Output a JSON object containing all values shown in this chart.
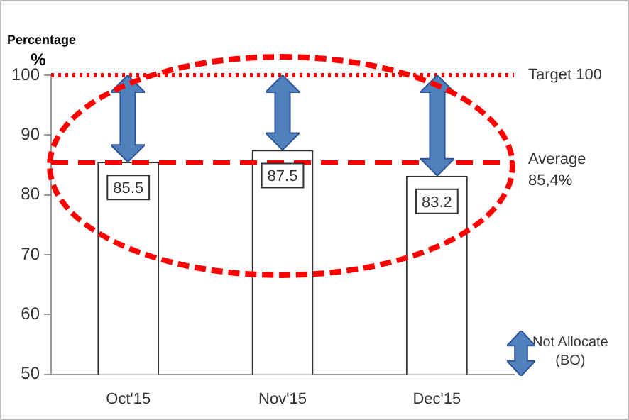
{
  "chart_data": {
    "type": "bar",
    "ylabel": "Percentage\n%",
    "categories": [
      "Oct'15",
      "Nov'15",
      "Dec'15"
    ],
    "values": [
      85.5,
      87.5,
      83.2
    ],
    "color": "#ffffff",
    "ylim": [
      50,
      100
    ],
    "yticks": [
      50,
      60,
      70,
      80,
      90,
      100
    ],
    "grid": false,
    "legend": false,
    "data_labels": true,
    "ref_lines": [
      {
        "axis": "y",
        "value": 100,
        "label": "Target 100",
        "color": "#ff0000",
        "line_style": "dotted"
      },
      {
        "axis": "y",
        "value": 85.4,
        "label": "Average\n85,4%",
        "color": "#ff0000",
        "line_style": "dashed"
      }
    ],
    "annotations": [
      "Not Allocate\n(BO)"
    ]
  }
}
